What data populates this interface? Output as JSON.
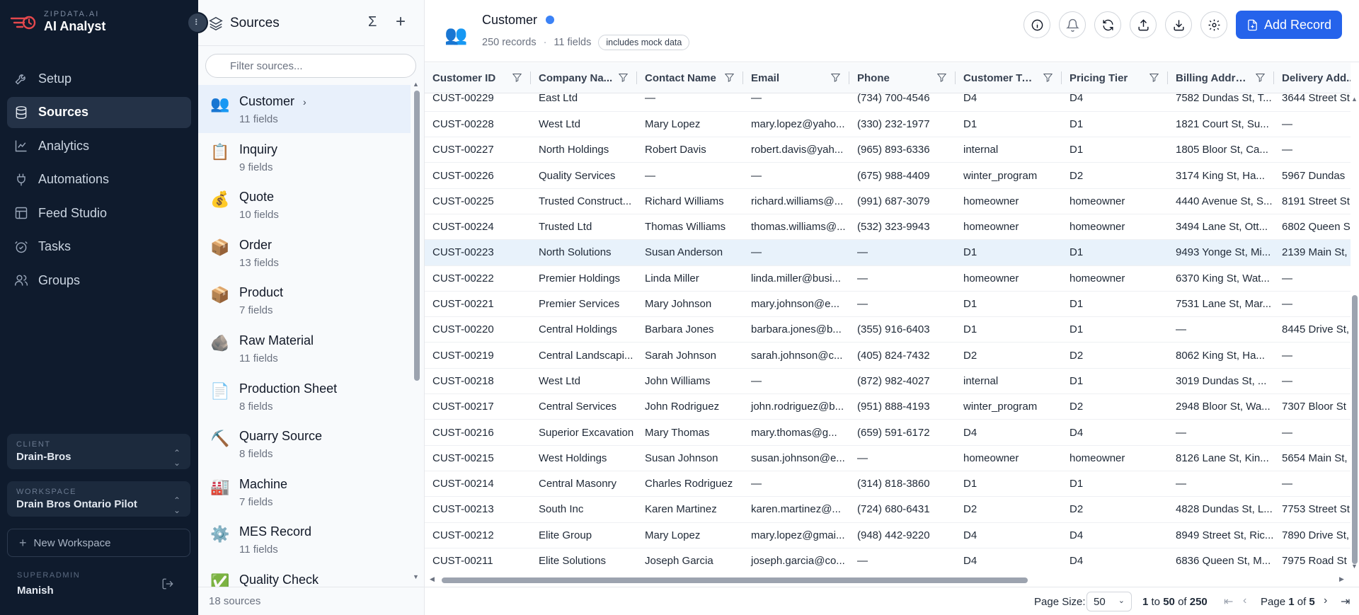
{
  "brand": {
    "sub": "ZIPDATA.AI",
    "title": "AI Analyst"
  },
  "nav": {
    "items": [
      {
        "label": "Setup",
        "icon": "wrench-icon"
      },
      {
        "label": "Sources",
        "icon": "database-icon",
        "active": true
      },
      {
        "label": "Analytics",
        "icon": "chart-line-icon"
      },
      {
        "label": "Automations",
        "icon": "plug-icon"
      },
      {
        "label": "Feed Studio",
        "icon": "layout-icon"
      },
      {
        "label": "Tasks",
        "icon": "alarm-check-icon"
      },
      {
        "label": "Groups",
        "icon": "users-icon"
      }
    ],
    "client": {
      "label": "CLIENT",
      "value": "Drain-Bros"
    },
    "workspace": {
      "label": "WORKSPACE",
      "value": "Drain Bros Ontario Pilot"
    },
    "new_workspace": "New Workspace",
    "user": {
      "label": "SUPERADMIN",
      "value": "Manish"
    }
  },
  "sources_panel": {
    "title": "Sources",
    "filter_placeholder": "Filter sources...",
    "items": [
      {
        "name": "Customer",
        "fields": "11 fields",
        "emoji": "👥",
        "active": true
      },
      {
        "name": "Inquiry",
        "fields": "9 fields",
        "emoji": "📋"
      },
      {
        "name": "Quote",
        "fields": "10 fields",
        "emoji": "💰"
      },
      {
        "name": "Order",
        "fields": "13 fields",
        "emoji": "📦"
      },
      {
        "name": "Product",
        "fields": "7 fields",
        "emoji": "📦"
      },
      {
        "name": "Raw Material",
        "fields": "11 fields",
        "emoji": "🪨"
      },
      {
        "name": "Production Sheet",
        "fields": "8 fields",
        "emoji": "📄"
      },
      {
        "name": "Quarry Source",
        "fields": "8 fields",
        "emoji": "⛏️"
      },
      {
        "name": "Machine",
        "fields": "7 fields",
        "emoji": "🏭"
      },
      {
        "name": "MES Record",
        "fields": "11 fields",
        "emoji": "⚙️"
      },
      {
        "name": "Quality Check",
        "fields": "",
        "emoji": "✅"
      }
    ],
    "footer": "18 sources"
  },
  "entity": {
    "emoji": "👥",
    "title": "Customer",
    "records": "250 records",
    "fields": "11 fields",
    "badge": "includes mock data",
    "add_label": "Add Record"
  },
  "table": {
    "columns": [
      "Customer ID",
      "Company Na...",
      "Contact Name",
      "Email",
      "Phone",
      "Customer Type",
      "Pricing Tier",
      "Billing Address",
      "Delivery Add..."
    ],
    "rows": [
      [
        "CUST-00229",
        "East Ltd",
        "—",
        "—",
        "(734) 700-4546",
        "D4",
        "D4",
        "7582 Dundas St, T...",
        "3644 Street St"
      ],
      [
        "CUST-00228",
        "West Ltd",
        "Mary Lopez",
        "mary.lopez@yaho...",
        "(330) 232-1977",
        "D1",
        "D1",
        "1821 Court St, Su...",
        "—"
      ],
      [
        "CUST-00227",
        "North Holdings",
        "Robert Davis",
        "robert.davis@yah...",
        "(965) 893-6336",
        "internal",
        "D1",
        "1805 Bloor St, Ca...",
        "—"
      ],
      [
        "CUST-00226",
        "Quality Services",
        "—",
        "—",
        "(675) 988-4409",
        "winter_program",
        "D2",
        "3174 King St, Ha...",
        "5967 Dundas"
      ],
      [
        "CUST-00225",
        "Trusted Construct...",
        "Richard Williams",
        "richard.williams@...",
        "(991) 687-3079",
        "homeowner",
        "homeowner",
        "4440 Avenue St, S...",
        "8191 Street St"
      ],
      [
        "CUST-00224",
        "Trusted Ltd",
        "Thomas Williams",
        "thomas.williams@...",
        "(532) 323-9943",
        "homeowner",
        "homeowner",
        "3494 Lane St, Ott...",
        "6802 Queen S"
      ],
      [
        "CUST-00223",
        "North Solutions",
        "Susan Anderson",
        "—",
        "—",
        "D1",
        "D1",
        "9493 Yonge St, Mi...",
        "2139 Main St,"
      ],
      [
        "CUST-00222",
        "Premier Holdings",
        "Linda Miller",
        "linda.miller@busi...",
        "—",
        "homeowner",
        "homeowner",
        "6370 King St, Wat...",
        "—"
      ],
      [
        "CUST-00221",
        "Premier Services",
        "Mary Johnson",
        "mary.johnson@e...",
        "—",
        "D1",
        "D1",
        "7531 Lane St, Mar...",
        "—"
      ],
      [
        "CUST-00220",
        "Central Holdings",
        "Barbara Jones",
        "barbara.jones@b...",
        "(355) 916-6403",
        "D1",
        "D1",
        "—",
        "8445 Drive St,"
      ],
      [
        "CUST-00219",
        "Central Landscapi...",
        "Sarah Johnson",
        "sarah.johnson@c...",
        "(405) 824-7432",
        "D2",
        "D2",
        "8062 King St, Ha...",
        "—"
      ],
      [
        "CUST-00218",
        "West Ltd",
        "John Williams",
        "—",
        "(872) 982-4027",
        "internal",
        "D1",
        "3019 Dundas St, ...",
        "—"
      ],
      [
        "CUST-00217",
        "Central Services",
        "John Rodriguez",
        "john.rodriguez@b...",
        "(951) 888-4193",
        "winter_program",
        "D2",
        "2948 Bloor St, Wa...",
        "7307 Bloor St"
      ],
      [
        "CUST-00216",
        "Superior Excavation",
        "Mary Thomas",
        "mary.thomas@g...",
        "(659) 591-6172",
        "D4",
        "D4",
        "—",
        "—"
      ],
      [
        "CUST-00215",
        "West Holdings",
        "Susan Johnson",
        "susan.johnson@e...",
        "—",
        "homeowner",
        "homeowner",
        "8126 Lane St, Kin...",
        "5654 Main St,"
      ],
      [
        "CUST-00214",
        "Central Masonry",
        "Charles Rodriguez",
        "—",
        "(314) 818-3860",
        "D1",
        "D1",
        "—",
        "—"
      ],
      [
        "CUST-00213",
        "South Inc",
        "Karen Martinez",
        "karen.martinez@...",
        "(724) 680-6431",
        "D2",
        "D2",
        "4828 Dundas St, L...",
        "7753 Street St"
      ],
      [
        "CUST-00212",
        "Elite Group",
        "Mary Lopez",
        "mary.lopez@gmai...",
        "(948) 442-9220",
        "D4",
        "D4",
        "8949 Street St, Ric...",
        "7890 Drive St,"
      ],
      [
        "CUST-00211",
        "Elite Solutions",
        "Joseph Garcia",
        "joseph.garcia@co...",
        "—",
        "D4",
        "D4",
        "6836 Queen St, M...",
        "7975 Road St"
      ]
    ],
    "highlighted_row": 6
  },
  "pager": {
    "page_size_label": "Page Size:",
    "page_size": "50",
    "range_from": "1",
    "range_to_word": "to",
    "range_to": "50",
    "of_word": "of",
    "total": "250",
    "page_word": "Page",
    "page": "1",
    "pages": "5"
  }
}
